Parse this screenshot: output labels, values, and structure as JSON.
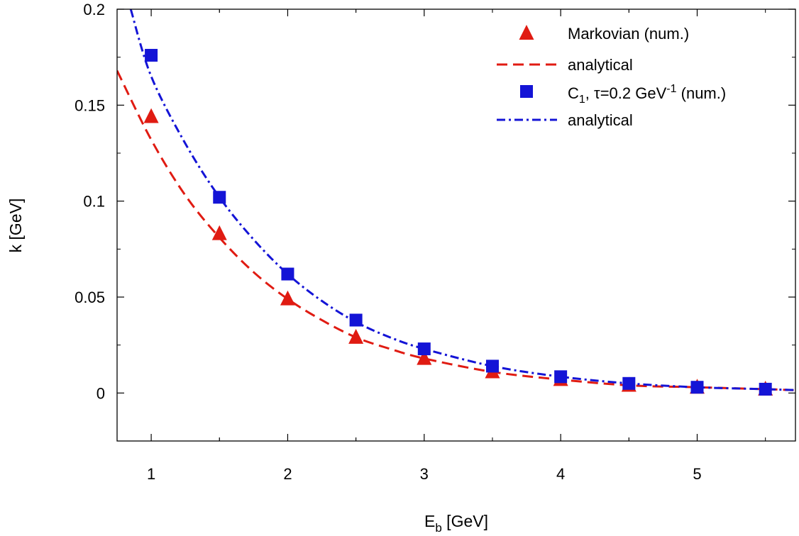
{
  "chart_data": {
    "type": "scatter",
    "title": "",
    "xlabel": {
      "main": "E",
      "sub": "b",
      "unit": " [GeV]"
    },
    "ylabel": "k [GeV]",
    "xlim": [
      0.75,
      5.72
    ],
    "ylim": [
      -0.025,
      0.2
    ],
    "x_ticks": [
      1,
      2,
      3,
      4,
      5
    ],
    "x_tick_labels": [
      "1",
      "2",
      "3",
      "4",
      "5"
    ],
    "y_ticks": [
      0,
      0.05,
      0.1,
      0.15,
      0.2
    ],
    "y_tick_labels": [
      "0",
      "0.05",
      "0.1",
      "0.15",
      "0.2"
    ],
    "grid": false,
    "legend_position": "top-right",
    "legend": {
      "markovian": "Markovian (num.)",
      "analytical_1": "analytical",
      "c1_main": "C",
      "c1_sub": "1",
      "c1_mid": ", τ=0.2 GeV",
      "c1_sup": "-1",
      "c1_tail": " (num.)",
      "analytical_2": "analytical"
    },
    "series": [
      {
        "key": "markovian",
        "kind": "points",
        "marker": "triangle",
        "color": "#e01b12",
        "x": [
          1.0,
          1.5,
          2.0,
          2.5,
          3.0,
          3.5,
          4.0,
          4.5,
          5.0,
          5.5
        ],
        "y": [
          0.144,
          0.083,
          0.049,
          0.029,
          0.018,
          0.011,
          0.007,
          0.004,
          0.003,
          0.002
        ]
      },
      {
        "key": "analytical_1",
        "kind": "line",
        "dash": "dashed",
        "color": "#e01b12",
        "x": [
          0.75,
          1.0,
          1.25,
          1.5,
          1.75,
          2.0,
          2.25,
          2.5,
          2.75,
          3.0,
          3.5,
          4.0,
          4.5,
          5.0,
          5.5,
          5.72
        ],
        "y": [
          0.168,
          0.132,
          0.103,
          0.081,
          0.063,
          0.049,
          0.038,
          0.029,
          0.023,
          0.018,
          0.011,
          0.007,
          0.004,
          0.003,
          0.002,
          0.0015
        ]
      },
      {
        "key": "c1",
        "kind": "points",
        "marker": "square",
        "color": "#1414d6",
        "x": [
          1.0,
          1.5,
          2.0,
          2.5,
          3.0,
          3.5,
          4.0,
          4.5,
          5.0,
          5.5
        ],
        "y": [
          0.176,
          0.102,
          0.062,
          0.038,
          0.023,
          0.014,
          0.0085,
          0.005,
          0.003,
          0.002
        ]
      },
      {
        "key": "analytical_2",
        "kind": "line",
        "dash": "dashdot",
        "color": "#1414d6",
        "x": [
          0.85,
          1.0,
          1.25,
          1.5,
          1.75,
          2.0,
          2.25,
          2.5,
          2.75,
          3.0,
          3.5,
          4.0,
          4.5,
          5.0,
          5.5,
          5.72
        ],
        "y": [
          0.2,
          0.165,
          0.13,
          0.102,
          0.08,
          0.062,
          0.048,
          0.037,
          0.029,
          0.023,
          0.014,
          0.0085,
          0.005,
          0.003,
          0.002,
          0.0015
        ]
      }
    ]
  }
}
